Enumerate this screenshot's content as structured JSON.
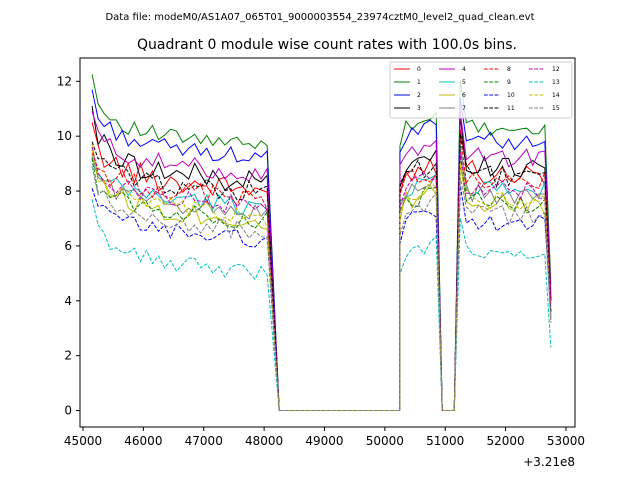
{
  "figure": {
    "suptitle": "Data file: modeM0/AS1A07_065T01_9000003554_23974cztM0_level2_quad_clean.evt",
    "title": "Quadrant 0 module wise count rates with 100.0s bins.",
    "x_offset_label": "+3.21e8"
  },
  "chart_data": {
    "type": "line",
    "title": "Quadrant 0 module wise count rates with 100.0s bins.",
    "xlabel": "",
    "ylabel": "",
    "x_offset": 321000000,
    "xlim": [
      44950,
      53150
    ],
    "ylim": [
      -0.6,
      12.85
    ],
    "x_ticks": [
      45000,
      46000,
      47000,
      48000,
      49000,
      50000,
      51000,
      52000,
      53000
    ],
    "x_tick_labels": [
      "45000",
      "46000",
      "47000",
      "48000",
      "49000",
      "50000",
      "51000",
      "52000",
      "53000"
    ],
    "y_ticks": [
      0,
      2,
      4,
      6,
      8,
      10,
      12
    ],
    "y_tick_labels": [
      "0",
      "2",
      "4",
      "6",
      "8",
      "10",
      "12"
    ],
    "grid": false,
    "legend_placement": "top-right",
    "x_segments": [
      {
        "start": 45150,
        "end": 48050,
        "step": 100,
        "state": "active"
      },
      {
        "start": 48250,
        "end": 50250,
        "step": 200,
        "state": "zero"
      },
      {
        "start": 50250,
        "end": 50850,
        "step": 100,
        "state": "active"
      },
      {
        "start": 50950,
        "end": 51150,
        "step": 100,
        "state": "zero"
      },
      {
        "start": 51250,
        "end": 52750,
        "step": 100,
        "state": "active"
      }
    ],
    "series": [
      {
        "name": "0",
        "color": "#ff0000",
        "dash": "solid",
        "start": 10.5,
        "mean": 8.6,
        "spread": 0.45,
        "drop": 5.0,
        "end_dip": 3.6
      },
      {
        "name": "1",
        "color": "#008000",
        "dash": "solid",
        "start": 12.25,
        "mean": 10.2,
        "spread": 0.3,
        "drop": 5.6,
        "end_dip": 4.6
      },
      {
        "name": "2",
        "color": "#0000ff",
        "dash": "solid",
        "start": 11.7,
        "mean": 9.8,
        "spread": 0.3,
        "drop": 5.4,
        "end_dip": 4.1
      },
      {
        "name": "3",
        "color": "#000000",
        "dash": "solid",
        "start": 11.1,
        "mean": 8.9,
        "spread": 0.45,
        "drop": 5.1,
        "end_dip": 4.0
      },
      {
        "name": "4",
        "color": "#bf00bf",
        "dash": "solid",
        "start": 10.9,
        "mean": 9.2,
        "spread": 0.35,
        "drop": 5.3,
        "end_dip": 4.3
      },
      {
        "name": "5",
        "color": "#00bfbf",
        "dash": "solid",
        "start": 9.0,
        "mean": 8.0,
        "spread": 0.35,
        "drop": 4.8,
        "end_dip": 3.4
      },
      {
        "name": "6",
        "color": "#bfbf00",
        "dash": "solid",
        "start": 9.7,
        "mean": 7.5,
        "spread": 0.4,
        "drop": 4.7,
        "end_dip": 3.5
      },
      {
        "name": "7",
        "color": "#808080",
        "dash": "solid",
        "start": 9.3,
        "mean": 7.8,
        "spread": 0.35,
        "drop": 4.8,
        "end_dip": 3.3
      },
      {
        "name": "8",
        "color": "#ff0000",
        "dash": "dashed",
        "start": 9.4,
        "mean": 8.3,
        "spread": 0.4,
        "drop": 5.0,
        "end_dip": 3.8
      },
      {
        "name": "9",
        "color": "#008000",
        "dash": "dashed",
        "start": 9.2,
        "mean": 7.5,
        "spread": 0.35,
        "drop": 4.8,
        "end_dip": 3.6
      },
      {
        "name": "10",
        "color": "#0000ff",
        "dash": "dashed",
        "start": 8.1,
        "mean": 6.8,
        "spread": 0.3,
        "drop": 4.5,
        "end_dip": 3.6
      },
      {
        "name": "11",
        "color": "#000000",
        "dash": "dashed",
        "start": 9.8,
        "mean": 8.5,
        "spread": 0.4,
        "drop": 5.0,
        "end_dip": 4.0
      },
      {
        "name": "12",
        "color": "#bf00bf",
        "dash": "dashed",
        "start": 9.6,
        "mean": 8.0,
        "spread": 0.35,
        "drop": 5.0,
        "end_dip": 3.9
      },
      {
        "name": "13",
        "color": "#00bfbf",
        "dash": "dashed",
        "start": 7.7,
        "mean": 5.6,
        "spread": 0.3,
        "drop": 4.2,
        "end_dip": 2.3
      },
      {
        "name": "14",
        "color": "#bfbf00",
        "dash": "dashed",
        "start": 9.5,
        "mean": 7.6,
        "spread": 0.35,
        "drop": 4.8,
        "end_dip": 3.3
      },
      {
        "name": "15",
        "color": "#808080",
        "dash": "dashed",
        "start": 8.9,
        "mean": 7.1,
        "spread": 0.35,
        "drop": 4.6,
        "end_dip": 3.2
      }
    ]
  }
}
